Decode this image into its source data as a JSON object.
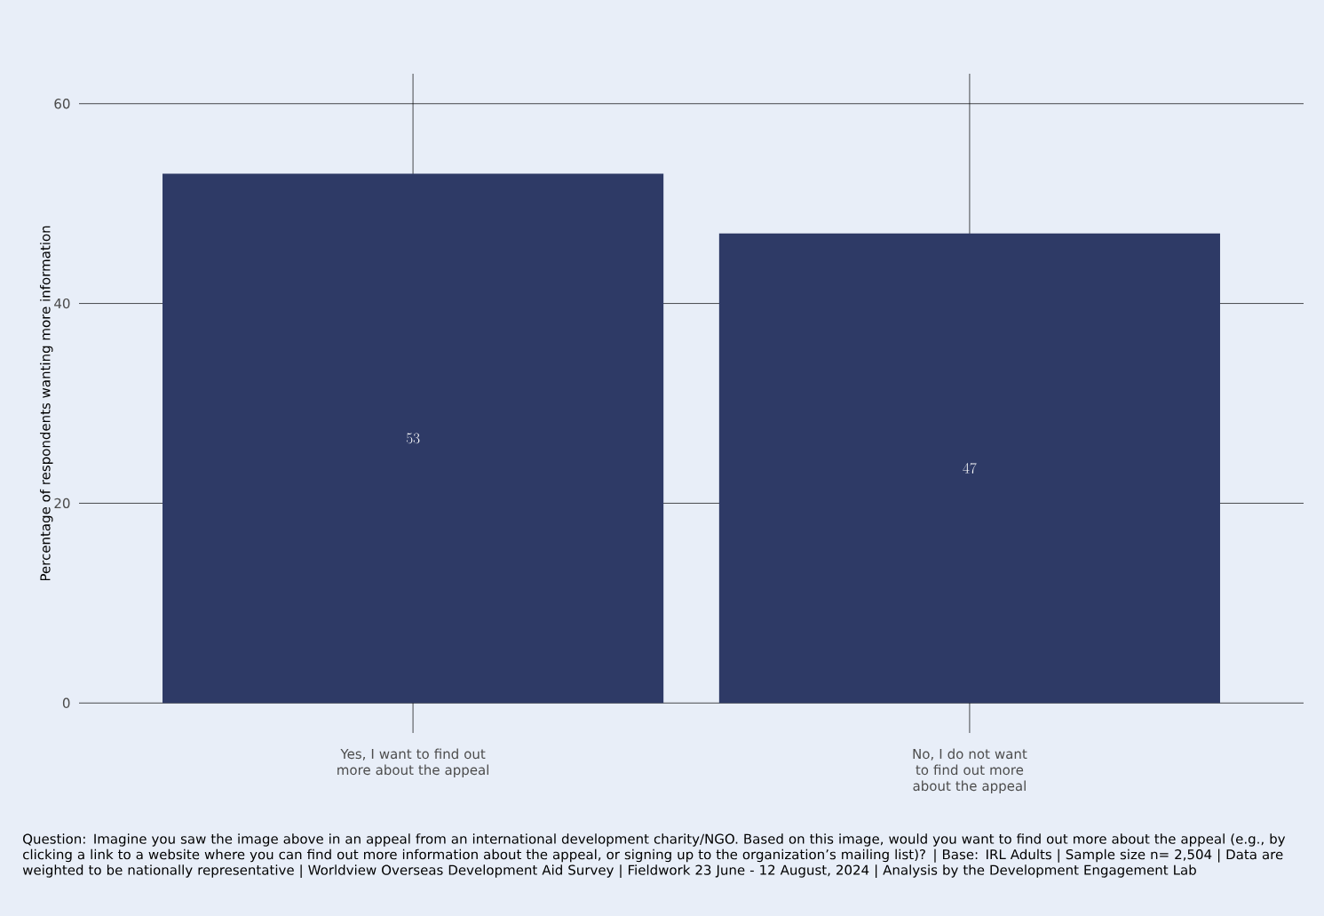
{
  "chart_data": {
    "type": "bar",
    "categories": [
      "Yes, I want to find out more about the appeal",
      "No, I do not want to find out more about the appeal"
    ],
    "values": [
      53,
      47
    ],
    "color": "#2e3a66",
    "ylabel": "Percentage of respondents wanting more information",
    "ylim": [
      -3,
      63
    ],
    "yticks": [
      0,
      20,
      40,
      60
    ],
    "grid": true,
    "data_labels": true,
    "annotations": [
      "Question: Imagine you saw the image above in an appeal from an international development charity/NGO. Based on this image, would you want to find out more about the appeal (e.g., by clicking a link to a website where you can find out more information about the appeal, or signing up to the organization’s mailing list)? | Base: IRL Adults | Sample size n= 2,504 | Data are weighted to be nationally representative | Worldview Overseas Development Aid Survey | Fieldwork 23 June - 12 August, 2024 | Analysis by the Development Engagement Lab"
    ]
  }
}
